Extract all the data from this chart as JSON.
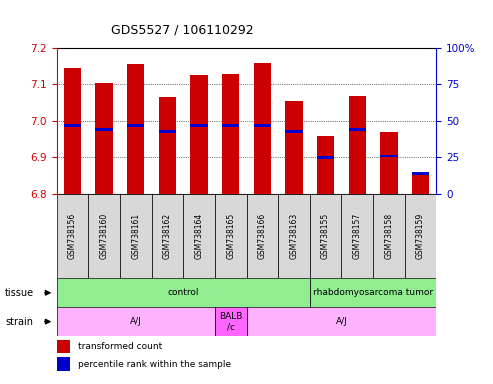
{
  "title": "GDS5527 / 106110292",
  "samples": [
    "GSM738156",
    "GSM738160",
    "GSM738161",
    "GSM738162",
    "GSM738164",
    "GSM738165",
    "GSM738166",
    "GSM738163",
    "GSM738155",
    "GSM738157",
    "GSM738158",
    "GSM738159"
  ],
  "transformed_counts": [
    7.145,
    7.105,
    7.155,
    7.065,
    7.125,
    7.13,
    7.16,
    7.055,
    6.96,
    7.068,
    6.97,
    6.855
  ],
  "percentile_ranks": [
    47,
    44,
    47,
    43,
    47,
    47,
    47,
    43,
    25,
    44,
    26,
    14
  ],
  "ylim": [
    6.8,
    7.2
  ],
  "yticks": [
    6.8,
    6.9,
    7.0,
    7.1,
    7.2
  ],
  "y2lim": [
    0,
    100
  ],
  "y2ticks": [
    0,
    25,
    50,
    75,
    100
  ],
  "bar_color": "#cc0000",
  "blue_color": "#0000cc",
  "left_axis_color": "#cc0000",
  "right_axis_color": "#0000cc",
  "tissue_groups": [
    {
      "label": "control",
      "start": 0,
      "end": 8,
      "color": "#90ee90"
    },
    {
      "label": "rhabdomyosarcoma tumor",
      "start": 8,
      "end": 12,
      "color": "#90ee90"
    }
  ],
  "strain_groups": [
    {
      "label": "A/J",
      "start": 0,
      "end": 5,
      "color": "#ffb3ff"
    },
    {
      "label": "BALB\n/c",
      "start": 5,
      "end": 6,
      "color": "#ff66ff"
    },
    {
      "label": "A/J",
      "start": 6,
      "end": 12,
      "color": "#ffb3ff"
    }
  ],
  "legend_items": [
    {
      "label": "transformed count",
      "color": "#cc0000"
    },
    {
      "label": "percentile rank within the sample",
      "color": "#0000cc"
    }
  ]
}
